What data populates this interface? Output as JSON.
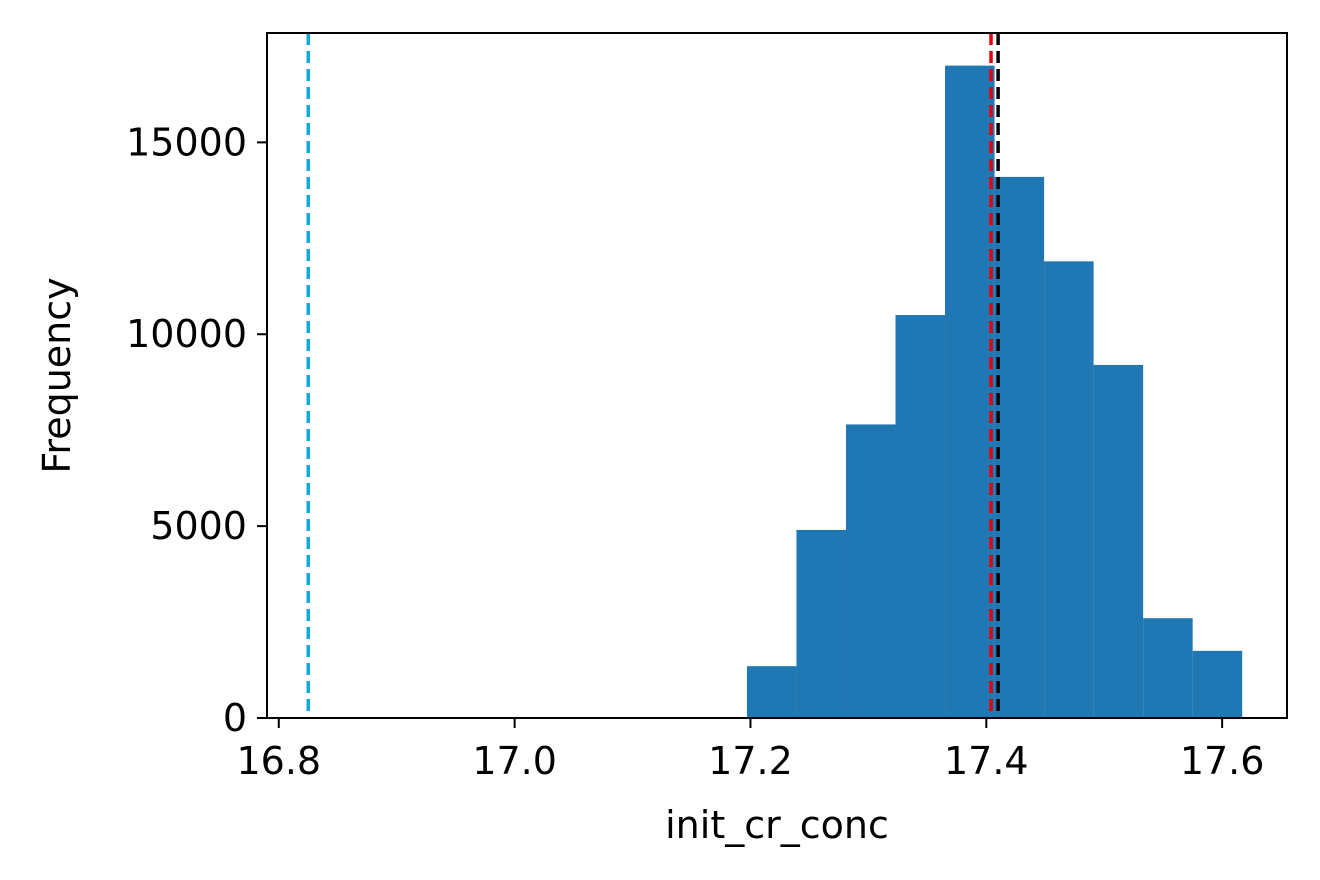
{
  "chart_data": {
    "type": "bar",
    "xlabel": "init_cr_conc",
    "ylabel": "Frequency",
    "xlim": [
      16.79,
      17.655
    ],
    "ylim": [
      0,
      17850
    ],
    "x_ticks": [
      16.8,
      17.0,
      17.2,
      17.4,
      17.6
    ],
    "x_tick_labels": [
      "16.8",
      "17.0",
      "17.2",
      "17.4",
      "17.6"
    ],
    "y_ticks": [
      0,
      5000,
      10000,
      15000
    ],
    "y_tick_labels": [
      "0",
      "5000",
      "10000",
      "15000"
    ],
    "bar_color": "#1f77b4",
    "bins": [
      {
        "x0": 17.197,
        "x1": 17.239,
        "count": 1350
      },
      {
        "x0": 17.239,
        "x1": 17.281,
        "count": 4900
      },
      {
        "x0": 17.281,
        "x1": 17.323,
        "count": 7650
      },
      {
        "x0": 17.323,
        "x1": 17.365,
        "count": 10500
      },
      {
        "x0": 17.365,
        "x1": 17.407,
        "count": 17000
      },
      {
        "x0": 17.407,
        "x1": 17.449,
        "count": 14100
      },
      {
        "x0": 17.449,
        "x1": 17.491,
        "count": 11900
      },
      {
        "x0": 17.491,
        "x1": 17.533,
        "count": 9200
      },
      {
        "x0": 17.533,
        "x1": 17.575,
        "count": 2600
      },
      {
        "x0": 17.575,
        "x1": 17.617,
        "count": 1750
      }
    ],
    "vlines": [
      {
        "x": 16.825,
        "color": "#11a9dc",
        "style": "dashed"
      },
      {
        "x": 17.404,
        "color": "#e4000f",
        "style": "dashed"
      },
      {
        "x": 17.41,
        "color": "#000000",
        "style": "dashed"
      }
    ],
    "grid": false
  }
}
